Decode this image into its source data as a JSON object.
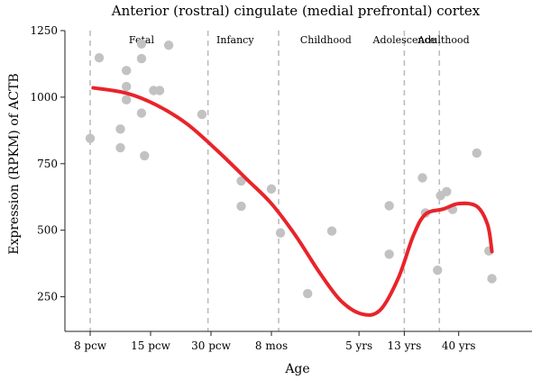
{
  "chart_data": {
    "type": "scatter",
    "title": "Anterior (rostral) cingulate (medial prefrontal) cortex",
    "xlabel": "Age",
    "ylabel": "Expression (RPKM) of ACTB",
    "ylim": [
      120,
      1250
    ],
    "yticks": [
      250,
      500,
      750,
      1000,
      1250
    ],
    "xticks": [
      {
        "label": "8 pcw",
        "pos": 0
      },
      {
        "label": "15 pcw",
        "pos": 1
      },
      {
        "label": "30 pcw",
        "pos": 2
      },
      {
        "label": "8 mos",
        "pos": 3
      },
      {
        "label": "5 yrs",
        "pos": 4.45
      },
      {
        "label": "13 yrs",
        "pos": 5.2
      },
      {
        "label": "40 yrs",
        "pos": 6.1
      }
    ],
    "xlim": [
      -0.3,
      6.35
    ],
    "period_boundaries": [
      0,
      1.95,
      3.12,
      5.2,
      5.78
    ],
    "periods": [
      {
        "label": "Fetal",
        "pos": 0.85
      },
      {
        "label": "Infancy",
        "pos": 2.4
      },
      {
        "label": "Childhood",
        "pos": 3.9
      },
      {
        "label": "Adolescence",
        "pos": 5.2
      },
      {
        "label": "Adulthood",
        "pos": 5.85
      }
    ],
    "points": [
      {
        "x": 0.0,
        "y": 845
      },
      {
        "x": 0.15,
        "y": 1148
      },
      {
        "x": 0.5,
        "y": 880
      },
      {
        "x": 0.5,
        "y": 810
      },
      {
        "x": 0.6,
        "y": 1100
      },
      {
        "x": 0.6,
        "y": 1040
      },
      {
        "x": 0.6,
        "y": 990
      },
      {
        "x": 0.85,
        "y": 1200
      },
      {
        "x": 0.85,
        "y": 1145
      },
      {
        "x": 0.85,
        "y": 940
      },
      {
        "x": 0.9,
        "y": 780
      },
      {
        "x": 1.05,
        "y": 1025
      },
      {
        "x": 1.15,
        "y": 1025
      },
      {
        "x": 1.3,
        "y": 1195
      },
      {
        "x": 1.85,
        "y": 935
      },
      {
        "x": 2.5,
        "y": 685
      },
      {
        "x": 2.5,
        "y": 590
      },
      {
        "x": 3.0,
        "y": 655
      },
      {
        "x": 3.15,
        "y": 490
      },
      {
        "x": 3.6,
        "y": 262
      },
      {
        "x": 4.0,
        "y": 497
      },
      {
        "x": 4.95,
        "y": 592
      },
      {
        "x": 4.95,
        "y": 410
      },
      {
        "x": 5.5,
        "y": 697
      },
      {
        "x": 5.55,
        "y": 565
      },
      {
        "x": 5.75,
        "y": 350
      },
      {
        "x": 5.8,
        "y": 630
      },
      {
        "x": 5.9,
        "y": 645
      },
      {
        "x": 6.0,
        "y": 578
      },
      {
        "x": 6.4,
        "y": 790
      },
      {
        "x": 6.6,
        "y": 422
      },
      {
        "x": 6.65,
        "y": 318
      }
    ],
    "trend": [
      {
        "x": 0.05,
        "y": 1035
      },
      {
        "x": 0.6,
        "y": 1015
      },
      {
        "x": 1.1,
        "y": 970
      },
      {
        "x": 1.6,
        "y": 900
      },
      {
        "x": 2.1,
        "y": 800
      },
      {
        "x": 2.6,
        "y": 690
      },
      {
        "x": 3.0,
        "y": 600
      },
      {
        "x": 3.4,
        "y": 480
      },
      {
        "x": 3.8,
        "y": 340
      },
      {
        "x": 4.15,
        "y": 235
      },
      {
        "x": 4.5,
        "y": 185
      },
      {
        "x": 4.8,
        "y": 200
      },
      {
        "x": 5.1,
        "y": 320
      },
      {
        "x": 5.35,
        "y": 480
      },
      {
        "x": 5.55,
        "y": 560
      },
      {
        "x": 5.85,
        "y": 580
      },
      {
        "x": 6.1,
        "y": 600
      },
      {
        "x": 6.4,
        "y": 590
      },
      {
        "x": 6.58,
        "y": 520
      },
      {
        "x": 6.65,
        "y": 420
      }
    ],
    "colors": {
      "points": "#c2c2c2",
      "trend": "#e8242a",
      "divider": "#bdbdbd",
      "axis": "#222222"
    },
    "grid": false
  }
}
